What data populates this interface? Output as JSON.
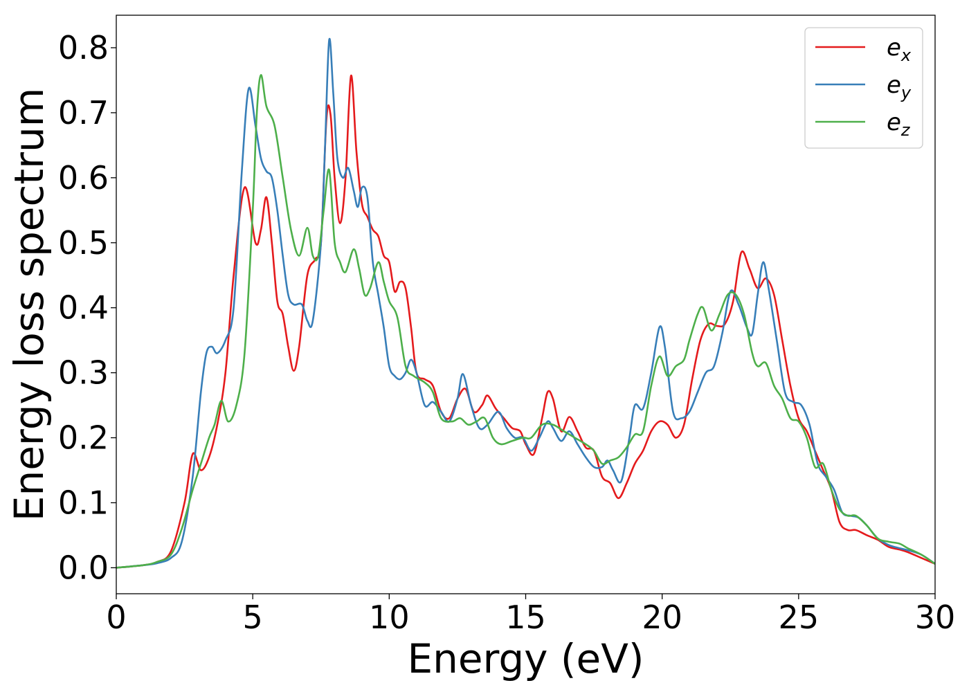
{
  "chart_data": {
    "type": "line",
    "xlabel": "Energy (eV)",
    "ylabel": "Energy loss spectrum",
    "xlim": [
      0,
      30
    ],
    "ylim": [
      -0.04,
      0.85
    ],
    "xticks": [
      0,
      5,
      10,
      15,
      20,
      25,
      30
    ],
    "yticks": [
      0.0,
      0.1,
      0.2,
      0.3,
      0.4,
      0.5,
      0.6,
      0.7,
      0.8
    ],
    "xtick_labels": [
      "0",
      "5",
      "10",
      "15",
      "20",
      "25",
      "30"
    ],
    "ytick_labels": [
      "0.0",
      "0.1",
      "0.2",
      "0.3",
      "0.4",
      "0.5",
      "0.6",
      "0.7",
      "0.8"
    ],
    "grid": false,
    "legend_position": "top-right",
    "series": [
      {
        "name": "e",
        "sub": "x",
        "color": "#e41a1c",
        "points": [
          [
            0,
            0
          ],
          [
            1,
            0.004
          ],
          [
            1.5,
            0.009
          ],
          [
            2,
            0.025
          ],
          [
            2.5,
            0.1
          ],
          [
            2.8,
            0.175
          ],
          [
            3.1,
            0.15
          ],
          [
            3.4,
            0.17
          ],
          [
            3.7,
            0.22
          ],
          [
            4.0,
            0.3
          ],
          [
            4.3,
            0.45
          ],
          [
            4.7,
            0.585
          ],
          [
            5.1,
            0.5
          ],
          [
            5.3,
            0.52
          ],
          [
            5.5,
            0.57
          ],
          [
            5.7,
            0.5
          ],
          [
            5.9,
            0.41
          ],
          [
            6.1,
            0.39
          ],
          [
            6.3,
            0.34
          ],
          [
            6.5,
            0.303
          ],
          [
            6.7,
            0.34
          ],
          [
            7.0,
            0.45
          ],
          [
            7.3,
            0.475
          ],
          [
            7.5,
            0.5
          ],
          [
            7.7,
            0.69
          ],
          [
            7.85,
            0.697
          ],
          [
            8.0,
            0.6
          ],
          [
            8.2,
            0.53
          ],
          [
            8.4,
            0.6
          ],
          [
            8.6,
            0.757
          ],
          [
            8.8,
            0.64
          ],
          [
            9.0,
            0.56
          ],
          [
            9.2,
            0.54
          ],
          [
            9.4,
            0.52
          ],
          [
            9.6,
            0.51
          ],
          [
            9.8,
            0.48
          ],
          [
            10.0,
            0.47
          ],
          [
            10.2,
            0.425
          ],
          [
            10.4,
            0.44
          ],
          [
            10.6,
            0.43
          ],
          [
            10.8,
            0.37
          ],
          [
            11.0,
            0.3
          ],
          [
            11.3,
            0.29
          ],
          [
            11.6,
            0.28
          ],
          [
            11.9,
            0.24
          ],
          [
            12.2,
            0.23
          ],
          [
            12.5,
            0.26
          ],
          [
            12.8,
            0.275
          ],
          [
            13.1,
            0.24
          ],
          [
            13.4,
            0.25
          ],
          [
            13.6,
            0.265
          ],
          [
            13.9,
            0.245
          ],
          [
            14.2,
            0.23
          ],
          [
            14.5,
            0.215
          ],
          [
            14.8,
            0.21
          ],
          [
            15.0,
            0.19
          ],
          [
            15.3,
            0.175
          ],
          [
            15.6,
            0.23
          ],
          [
            15.8,
            0.27
          ],
          [
            16.0,
            0.26
          ],
          [
            16.3,
            0.21
          ],
          [
            16.6,
            0.232
          ],
          [
            16.9,
            0.21
          ],
          [
            17.2,
            0.185
          ],
          [
            17.5,
            0.18
          ],
          [
            17.8,
            0.14
          ],
          [
            18.1,
            0.13
          ],
          [
            18.4,
            0.107
          ],
          [
            18.7,
            0.13
          ],
          [
            19.0,
            0.16
          ],
          [
            19.3,
            0.18
          ],
          [
            19.6,
            0.21
          ],
          [
            19.9,
            0.225
          ],
          [
            20.2,
            0.22
          ],
          [
            20.5,
            0.2
          ],
          [
            20.8,
            0.22
          ],
          [
            21.1,
            0.29
          ],
          [
            21.4,
            0.35
          ],
          [
            21.7,
            0.375
          ],
          [
            22.0,
            0.372
          ],
          [
            22.3,
            0.375
          ],
          [
            22.6,
            0.41
          ],
          [
            22.9,
            0.485
          ],
          [
            23.2,
            0.46
          ],
          [
            23.5,
            0.43
          ],
          [
            23.8,
            0.445
          ],
          [
            24.1,
            0.42
          ],
          [
            24.4,
            0.35
          ],
          [
            24.7,
            0.28
          ],
          [
            25.0,
            0.23
          ],
          [
            25.3,
            0.21
          ],
          [
            25.6,
            0.18
          ],
          [
            25.9,
            0.15
          ],
          [
            26.2,
            0.12
          ],
          [
            26.5,
            0.07
          ],
          [
            26.8,
            0.058
          ],
          [
            27.1,
            0.058
          ],
          [
            27.5,
            0.05
          ],
          [
            27.9,
            0.043
          ],
          [
            28.3,
            0.032
          ],
          [
            28.7,
            0.028
          ],
          [
            29.0,
            0.024
          ],
          [
            29.5,
            0.015
          ],
          [
            30,
            0.006
          ]
        ]
      },
      {
        "name": "e",
        "sub": "y",
        "color": "#377eb8",
        "points": [
          [
            0,
            0
          ],
          [
            1,
            0.004
          ],
          [
            1.5,
            0.007
          ],
          [
            2,
            0.015
          ],
          [
            2.4,
            0.04
          ],
          [
            2.8,
            0.14
          ],
          [
            3.1,
            0.27
          ],
          [
            3.3,
            0.33
          ],
          [
            3.5,
            0.34
          ],
          [
            3.7,
            0.33
          ],
          [
            4.0,
            0.35
          ],
          [
            4.3,
            0.4
          ],
          [
            4.6,
            0.61
          ],
          [
            4.85,
            0.737
          ],
          [
            5.1,
            0.68
          ],
          [
            5.3,
            0.63
          ],
          [
            5.5,
            0.61
          ],
          [
            5.7,
            0.6
          ],
          [
            5.9,
            0.55
          ],
          [
            6.1,
            0.48
          ],
          [
            6.3,
            0.42
          ],
          [
            6.5,
            0.405
          ],
          [
            6.8,
            0.405
          ],
          [
            7.0,
            0.38
          ],
          [
            7.2,
            0.38
          ],
          [
            7.5,
            0.5
          ],
          [
            7.65,
            0.65
          ],
          [
            7.8,
            0.812
          ],
          [
            7.95,
            0.73
          ],
          [
            8.1,
            0.63
          ],
          [
            8.3,
            0.6
          ],
          [
            8.5,
            0.615
          ],
          [
            8.7,
            0.58
          ],
          [
            8.85,
            0.555
          ],
          [
            9.0,
            0.585
          ],
          [
            9.2,
            0.57
          ],
          [
            9.4,
            0.47
          ],
          [
            9.6,
            0.42
          ],
          [
            9.8,
            0.37
          ],
          [
            10.0,
            0.31
          ],
          [
            10.2,
            0.295
          ],
          [
            10.4,
            0.29
          ],
          [
            10.6,
            0.3
          ],
          [
            10.8,
            0.32
          ],
          [
            11.0,
            0.3
          ],
          [
            11.3,
            0.25
          ],
          [
            11.6,
            0.255
          ],
          [
            11.9,
            0.24
          ],
          [
            12.2,
            0.225
          ],
          [
            12.5,
            0.26
          ],
          [
            12.7,
            0.298
          ],
          [
            13.0,
            0.25
          ],
          [
            13.3,
            0.215
          ],
          [
            13.6,
            0.22
          ],
          [
            14.0,
            0.24
          ],
          [
            14.3,
            0.215
          ],
          [
            14.6,
            0.2
          ],
          [
            14.9,
            0.2
          ],
          [
            15.2,
            0.18
          ],
          [
            15.5,
            0.2
          ],
          [
            15.8,
            0.225
          ],
          [
            16.0,
            0.215
          ],
          [
            16.3,
            0.195
          ],
          [
            16.6,
            0.21
          ],
          [
            16.9,
            0.19
          ],
          [
            17.2,
            0.17
          ],
          [
            17.5,
            0.155
          ],
          [
            17.8,
            0.155
          ],
          [
            18.0,
            0.165
          ],
          [
            18.2,
            0.15
          ],
          [
            18.5,
            0.133
          ],
          [
            18.8,
            0.2
          ],
          [
            19.0,
            0.25
          ],
          [
            19.3,
            0.245
          ],
          [
            19.6,
            0.3
          ],
          [
            19.9,
            0.37
          ],
          [
            20.1,
            0.34
          ],
          [
            20.4,
            0.24
          ],
          [
            20.7,
            0.23
          ],
          [
            21.0,
            0.24
          ],
          [
            21.3,
            0.27
          ],
          [
            21.6,
            0.3
          ],
          [
            21.9,
            0.31
          ],
          [
            22.2,
            0.36
          ],
          [
            22.5,
            0.425
          ],
          [
            22.8,
            0.405
          ],
          [
            23.1,
            0.37
          ],
          [
            23.3,
            0.36
          ],
          [
            23.5,
            0.42
          ],
          [
            23.7,
            0.47
          ],
          [
            23.9,
            0.43
          ],
          [
            24.2,
            0.35
          ],
          [
            24.5,
            0.27
          ],
          [
            24.8,
            0.255
          ],
          [
            25.1,
            0.25
          ],
          [
            25.4,
            0.22
          ],
          [
            25.7,
            0.16
          ],
          [
            26.0,
            0.14
          ],
          [
            26.3,
            0.12
          ],
          [
            26.6,
            0.085
          ],
          [
            26.9,
            0.08
          ],
          [
            27.2,
            0.077
          ],
          [
            27.5,
            0.065
          ],
          [
            27.9,
            0.045
          ],
          [
            28.3,
            0.035
          ],
          [
            28.7,
            0.03
          ],
          [
            29.0,
            0.027
          ],
          [
            29.5,
            0.02
          ],
          [
            30,
            0.006
          ]
        ]
      },
      {
        "name": "e",
        "sub": "z",
        "color": "#4daf4a",
        "points": [
          [
            0,
            0
          ],
          [
            1,
            0.004
          ],
          [
            1.5,
            0.009
          ],
          [
            2,
            0.02
          ],
          [
            2.4,
            0.06
          ],
          [
            2.8,
            0.12
          ],
          [
            3.1,
            0.16
          ],
          [
            3.4,
            0.2
          ],
          [
            3.6,
            0.22
          ],
          [
            3.85,
            0.257
          ],
          [
            4.1,
            0.225
          ],
          [
            4.4,
            0.25
          ],
          [
            4.7,
            0.33
          ],
          [
            5.0,
            0.55
          ],
          [
            5.15,
            0.7
          ],
          [
            5.3,
            0.758
          ],
          [
            5.5,
            0.71
          ],
          [
            5.8,
            0.68
          ],
          [
            6.1,
            0.6
          ],
          [
            6.4,
            0.52
          ],
          [
            6.7,
            0.48
          ],
          [
            7.0,
            0.523
          ],
          [
            7.2,
            0.48
          ],
          [
            7.4,
            0.48
          ],
          [
            7.6,
            0.55
          ],
          [
            7.8,
            0.612
          ],
          [
            8.0,
            0.5
          ],
          [
            8.2,
            0.47
          ],
          [
            8.4,
            0.455
          ],
          [
            8.7,
            0.49
          ],
          [
            8.9,
            0.46
          ],
          [
            9.1,
            0.42
          ],
          [
            9.3,
            0.43
          ],
          [
            9.6,
            0.47
          ],
          [
            9.8,
            0.44
          ],
          [
            10.0,
            0.41
          ],
          [
            10.3,
            0.385
          ],
          [
            10.6,
            0.31
          ],
          [
            10.9,
            0.295
          ],
          [
            11.3,
            0.285
          ],
          [
            11.6,
            0.27
          ],
          [
            11.9,
            0.23
          ],
          [
            12.3,
            0.225
          ],
          [
            12.6,
            0.23
          ],
          [
            12.9,
            0.22
          ],
          [
            13.2,
            0.225
          ],
          [
            13.5,
            0.23
          ],
          [
            13.8,
            0.2
          ],
          [
            14.1,
            0.19
          ],
          [
            14.5,
            0.195
          ],
          [
            14.9,
            0.2
          ],
          [
            15.2,
            0.2
          ],
          [
            15.6,
            0.22
          ],
          [
            16.0,
            0.22
          ],
          [
            16.4,
            0.21
          ],
          [
            16.8,
            0.2
          ],
          [
            17.2,
            0.19
          ],
          [
            17.5,
            0.18
          ],
          [
            17.8,
            0.16
          ],
          [
            18.1,
            0.165
          ],
          [
            18.4,
            0.17
          ],
          [
            18.7,
            0.185
          ],
          [
            19.0,
            0.205
          ],
          [
            19.3,
            0.21
          ],
          [
            19.6,
            0.28
          ],
          [
            19.9,
            0.325
          ],
          [
            20.2,
            0.295
          ],
          [
            20.5,
            0.31
          ],
          [
            20.8,
            0.32
          ],
          [
            21.0,
            0.35
          ],
          [
            21.3,
            0.39
          ],
          [
            21.5,
            0.4
          ],
          [
            21.8,
            0.365
          ],
          [
            22.1,
            0.39
          ],
          [
            22.4,
            0.42
          ],
          [
            22.7,
            0.42
          ],
          [
            23.0,
            0.39
          ],
          [
            23.3,
            0.33
          ],
          [
            23.5,
            0.31
          ],
          [
            23.8,
            0.315
          ],
          [
            24.1,
            0.28
          ],
          [
            24.4,
            0.26
          ],
          [
            24.7,
            0.23
          ],
          [
            25.0,
            0.225
          ],
          [
            25.3,
            0.2
          ],
          [
            25.6,
            0.155
          ],
          [
            25.9,
            0.16
          ],
          [
            26.2,
            0.12
          ],
          [
            26.5,
            0.09
          ],
          [
            26.8,
            0.08
          ],
          [
            27.1,
            0.08
          ],
          [
            27.5,
            0.065
          ],
          [
            27.9,
            0.045
          ],
          [
            28.3,
            0.04
          ],
          [
            28.7,
            0.037
          ],
          [
            29.0,
            0.03
          ],
          [
            29.5,
            0.02
          ],
          [
            30,
            0.006
          ]
        ]
      }
    ]
  }
}
